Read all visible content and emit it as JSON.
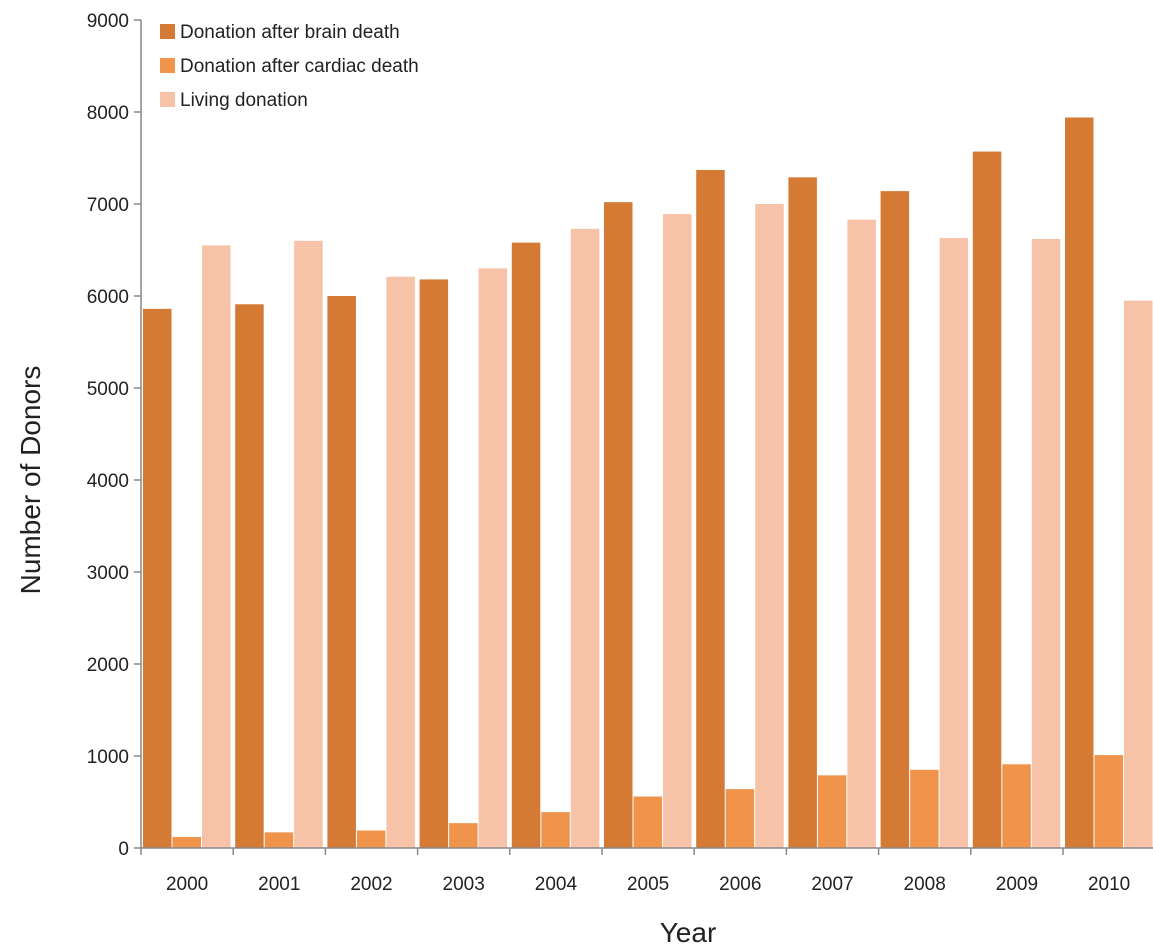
{
  "chart_data": {
    "type": "bar",
    "title": "",
    "xlabel": "Year",
    "ylabel": "Number of Donors",
    "categories": [
      "2000",
      "2001",
      "2002",
      "2003",
      "2004",
      "2005",
      "2006",
      "2007",
      "2008",
      "2009",
      "2010"
    ],
    "ylim": [
      0,
      9000
    ],
    "yticks": [
      0,
      1000,
      2000,
      3000,
      4000,
      5000,
      6000,
      7000,
      8000,
      9000
    ],
    "grid": false,
    "legend_position": "top-left",
    "series": [
      {
        "name": "Donation after brain death",
        "color": "#d47a35",
        "values": [
          5860,
          5910,
          6000,
          6180,
          6580,
          7020,
          7370,
          7290,
          7140,
          7570,
          7940
        ]
      },
      {
        "name": "Donation after cardiac death",
        "color": "#f0944c",
        "values": [
          120,
          170,
          190,
          270,
          390,
          560,
          640,
          790,
          850,
          910,
          1010
        ]
      },
      {
        "name": "Living donation",
        "color": "#f6c2a8",
        "values": [
          6550,
          6600,
          6210,
          6300,
          6730,
          6890,
          7000,
          6830,
          6630,
          6620,
          5950
        ]
      }
    ]
  }
}
